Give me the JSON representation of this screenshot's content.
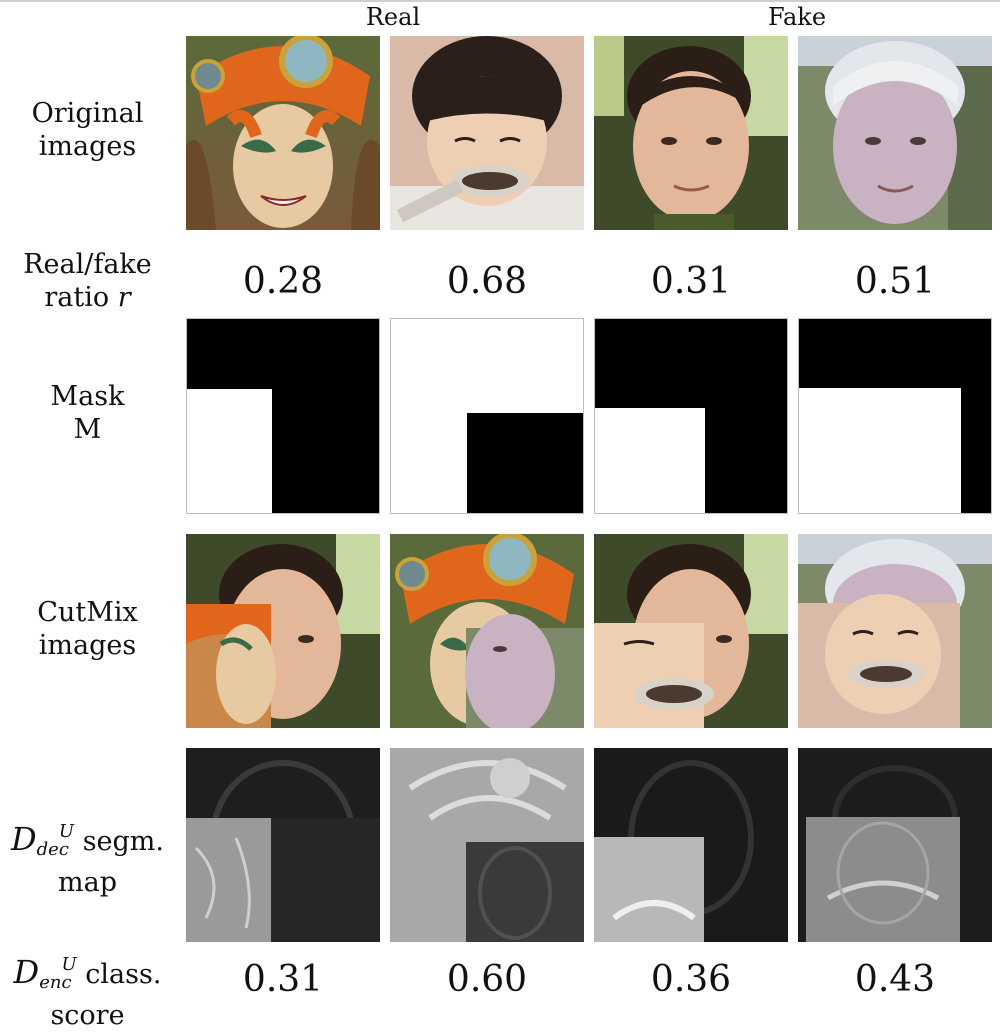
{
  "column_groups": {
    "real": "Real",
    "fake": "Fake"
  },
  "rows": {
    "original": {
      "line1": "Original",
      "line2": "images"
    },
    "ratio": {
      "line1": "Real/fake",
      "line2_text": "ratio",
      "line2_symbol": "r"
    },
    "mask": {
      "line1": "Mask",
      "line2": "M"
    },
    "cutmix": {
      "line1": "CutMix",
      "line2": "images"
    },
    "segm": {
      "symbol": "D",
      "sup": "U",
      "sub": "dec",
      "suffix": "segm.",
      "line2": "map"
    },
    "class": {
      "symbol": "D",
      "sup": "U",
      "sub": "enc",
      "suffix": "class.",
      "line2": "score"
    }
  },
  "ratio_values": [
    "0.28",
    "0.68",
    "0.31",
    "0.51"
  ],
  "score_values": [
    "0.31",
    "0.60",
    "0.36",
    "0.43"
  ]
}
